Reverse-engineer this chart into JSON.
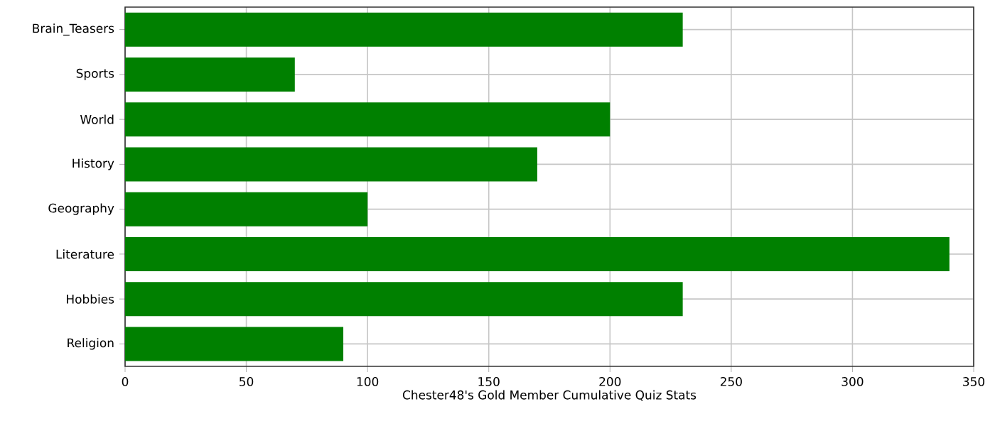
{
  "chart_data": {
    "type": "bar",
    "orientation": "horizontal",
    "xlabel": "Chester48's Gold Member Cumulative Quiz Stats",
    "categories": [
      "Brain_Teasers",
      "Sports",
      "World",
      "History",
      "Geography",
      "Literature",
      "Hobbies",
      "Religion"
    ],
    "values": [
      230,
      70,
      200,
      170,
      100,
      340,
      230,
      90
    ],
    "color": "#008000",
    "xlim": [
      0,
      350
    ],
    "xticks": [
      0,
      50,
      100,
      150,
      200,
      250,
      300,
      350
    ],
    "grid": true
  }
}
